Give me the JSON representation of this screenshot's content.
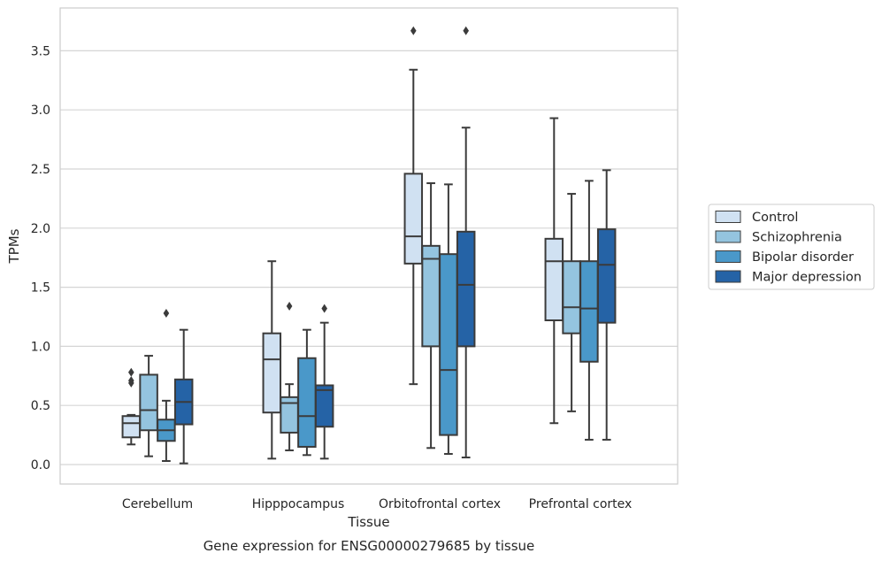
{
  "chart_data": {
    "type": "box",
    "caption": "Gene expression for ENSG00000279685 by tissue",
    "xlabel": "Tissue",
    "ylabel": "TPMs",
    "ylim": [
      -0.17,
      3.88
    ],
    "yticks": [
      0.0,
      0.5,
      1.0,
      1.5,
      2.0,
      2.5,
      3.0,
      3.5
    ],
    "ytick_labels": [
      "0.0",
      "0.5",
      "1.0",
      "1.5",
      "2.0",
      "2.5",
      "3.0",
      "3.5"
    ],
    "grid": "horizontal",
    "legend_position": "right, outside",
    "categories": [
      "Cerebellum",
      "Hipppocampus",
      "Orbitofrontal cortex",
      "Prefrontal cortex"
    ],
    "series": [
      {
        "name": "Control",
        "color": "#d0e1f2",
        "boxes": [
          {
            "whislo": 0.17,
            "q1": 0.23,
            "med": 0.35,
            "q3": 0.41,
            "whishi": 0.42,
            "fliers": [
              0.78,
              0.71,
              0.69
            ]
          },
          {
            "whislo": 0.05,
            "q1": 0.44,
            "med": 0.89,
            "q3": 1.11,
            "whishi": 1.72,
            "fliers": []
          },
          {
            "whislo": 0.68,
            "q1": 1.7,
            "med": 1.93,
            "q3": 2.46,
            "whishi": 3.34,
            "fliers": [
              3.67
            ]
          },
          {
            "whislo": 0.35,
            "q1": 1.22,
            "med": 1.72,
            "q3": 1.91,
            "whishi": 2.93,
            "fliers": []
          }
        ]
      },
      {
        "name": "Schizophrenia",
        "color": "#94c4df",
        "boxes": [
          {
            "whislo": 0.07,
            "q1": 0.29,
            "med": 0.46,
            "q3": 0.76,
            "whishi": 0.92,
            "fliers": []
          },
          {
            "whislo": 0.12,
            "q1": 0.27,
            "med": 0.52,
            "q3": 0.57,
            "whishi": 0.68,
            "fliers": [
              1.34
            ]
          },
          {
            "whislo": 0.14,
            "q1": 1.0,
            "med": 1.74,
            "q3": 1.85,
            "whishi": 2.38,
            "fliers": []
          },
          {
            "whislo": 0.45,
            "q1": 1.11,
            "med": 1.33,
            "q3": 1.72,
            "whishi": 2.29,
            "fliers": []
          }
        ]
      },
      {
        "name": "Bipolar disorder",
        "color": "#4a98c9",
        "boxes": [
          {
            "whislo": 0.03,
            "q1": 0.2,
            "med": 0.29,
            "q3": 0.38,
            "whishi": 0.54,
            "fliers": [
              1.28
            ]
          },
          {
            "whislo": 0.08,
            "q1": 0.15,
            "med": 0.41,
            "q3": 0.9,
            "whishi": 1.14,
            "fliers": []
          },
          {
            "whislo": 0.09,
            "q1": 0.25,
            "med": 0.8,
            "q3": 1.78,
            "whishi": 2.37,
            "fliers": []
          },
          {
            "whislo": 0.21,
            "q1": 0.87,
            "med": 1.32,
            "q3": 1.72,
            "whishi": 2.4,
            "fliers": []
          }
        ]
      },
      {
        "name": "Major depression",
        "color": "#2563a6",
        "boxes": [
          {
            "whislo": 0.01,
            "q1": 0.34,
            "med": 0.53,
            "q3": 0.72,
            "whishi": 1.14,
            "fliers": []
          },
          {
            "whislo": 0.05,
            "q1": 0.32,
            "med": 0.63,
            "q3": 0.67,
            "whishi": 1.2,
            "fliers": [
              1.32
            ]
          },
          {
            "whislo": 0.06,
            "q1": 1.0,
            "med": 1.52,
            "q3": 1.97,
            "whishi": 2.85,
            "fliers": [
              3.67
            ]
          },
          {
            "whislo": 0.21,
            "q1": 1.2,
            "med": 1.69,
            "q3": 1.99,
            "whishi": 2.49,
            "fliers": []
          }
        ]
      }
    ]
  }
}
